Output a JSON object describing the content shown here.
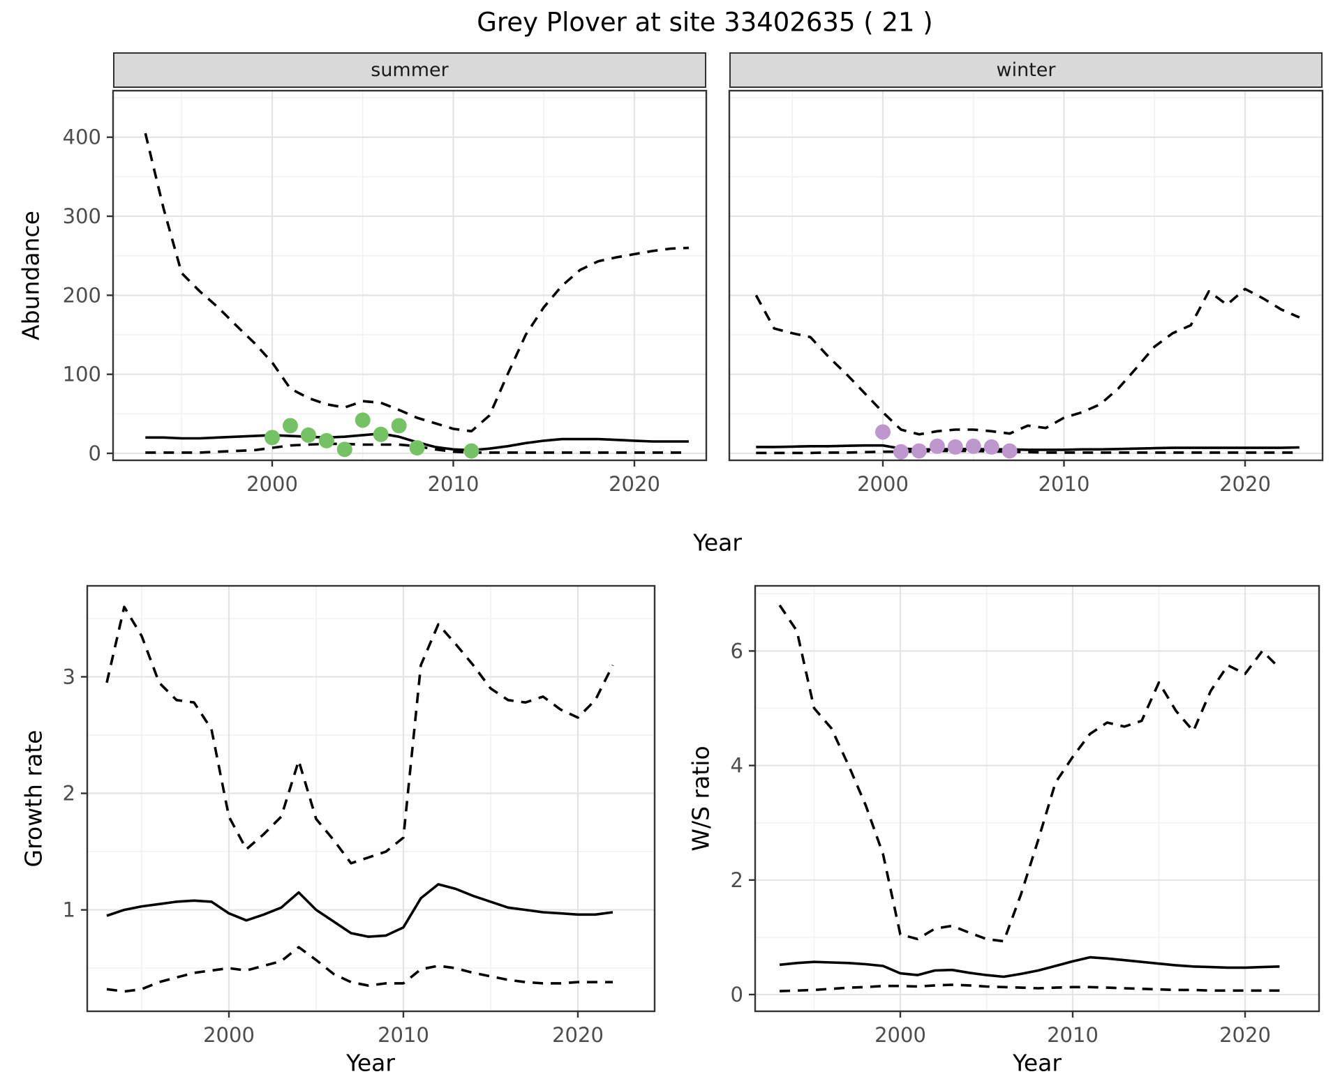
{
  "title": "Grey Plover at site 33402635 ( 21 )",
  "facets": [
    "summer",
    "winter"
  ],
  "colors": {
    "summer_point": "#74c263",
    "winter_point": "#bf97cf",
    "line": "#000000",
    "grid_major": "#e4e4e4",
    "grid_minor": "#f2f2f2",
    "strip_fill": "#d9d9d9",
    "panel_border": "#333333",
    "tick_text": "#4d4d4d"
  },
  "chart_data": [
    {
      "id": "abundance-summer",
      "type": "line",
      "facet": "summer",
      "xlabel": "Year",
      "ylabel": "Abundance",
      "x_ticks": [
        2000,
        2010,
        2020
      ],
      "x_minor": [
        1995,
        2005,
        2015
      ],
      "y_ticks": [
        0,
        100,
        200,
        300,
        400
      ],
      "y_minor": [
        50,
        150,
        250,
        350,
        450
      ],
      "ylim": [
        -9,
        459
      ],
      "xlim": [
        1991.2,
        2024.0
      ],
      "years": [
        1993,
        1994,
        1995,
        1996,
        1997,
        1998,
        1999,
        2000,
        2001,
        2002,
        2003,
        2004,
        2005,
        2006,
        2007,
        2008,
        2009,
        2010,
        2011,
        2012,
        2013,
        2014,
        2015,
        2016,
        2017,
        2018,
        2019,
        2020,
        2021,
        2022,
        2023
      ],
      "series": [
        {
          "name": "upper_ci",
          "style": "dashed",
          "values": [
            405,
            310,
            228,
            205,
            185,
            162,
            140,
            115,
            82,
            70,
            62,
            58,
            66,
            64,
            55,
            45,
            38,
            31,
            28,
            48,
            100,
            150,
            185,
            212,
            232,
            243,
            248,
            252,
            256,
            259,
            260
          ]
        },
        {
          "name": "median",
          "style": "solid",
          "values": [
            20,
            20,
            19,
            19,
            20,
            21,
            22,
            23,
            22,
            21,
            20,
            21,
            23,
            25,
            21,
            14,
            8,
            5,
            4,
            6,
            9,
            13,
            16,
            18,
            18,
            18,
            17,
            16,
            15,
            15,
            15
          ]
        },
        {
          "name": "lower_ci",
          "style": "dashed",
          "values": [
            1,
            1,
            1,
            1,
            2,
            3,
            4,
            7,
            10,
            11,
            12,
            12,
            11,
            11,
            11,
            9,
            5,
            2,
            1,
            1,
            1,
            1,
            1,
            1,
            1,
            1,
            1,
            1,
            1,
            1,
            1
          ]
        }
      ],
      "points": {
        "name": "observed-counts",
        "color_key": "summer_point",
        "x": [
          2000,
          2001,
          2002,
          2003,
          2004,
          2005,
          2006,
          2007,
          2008,
          2011
        ],
        "y": [
          20,
          35,
          23,
          16,
          5,
          42,
          24,
          35,
          7,
          3
        ]
      }
    },
    {
      "id": "abundance-winter",
      "type": "line",
      "facet": "winter",
      "xlabel": "Year",
      "ylabel": "Abundance",
      "x_ticks": [
        2000,
        2010,
        2020
      ],
      "x_minor": [
        1995,
        2005,
        2015
      ],
      "y_ticks": [
        0,
        100,
        200,
        300,
        400
      ],
      "y_minor": [
        50,
        150,
        250,
        350,
        450
      ],
      "ylim": [
        -9,
        459
      ],
      "xlim": [
        1991.2,
        2024.0
      ],
      "years": [
        1993,
        1994,
        1995,
        1996,
        1997,
        1998,
        1999,
        2000,
        2001,
        2002,
        2003,
        2004,
        2005,
        2006,
        2007,
        2008,
        2009,
        2010,
        2011,
        2012,
        2013,
        2014,
        2015,
        2016,
        2017,
        2018,
        2019,
        2020,
        2021,
        2022,
        2023
      ],
      "series": [
        {
          "name": "upper_ci",
          "style": "dashed",
          "values": [
            200,
            158,
            152,
            147,
            122,
            100,
            76,
            52,
            30,
            24,
            28,
            30,
            30,
            28,
            25,
            35,
            32,
            45,
            52,
            62,
            82,
            108,
            135,
            152,
            162,
            205,
            188,
            208,
            196,
            182,
            172
          ]
        },
        {
          "name": "median",
          "style": "solid",
          "values": [
            8,
            8,
            8.5,
            9,
            9,
            9.5,
            10,
            10,
            6,
            5,
            5,
            5.5,
            5.5,
            5,
            5,
            4.5,
            4.5,
            4.5,
            5,
            5,
            5.5,
            6,
            6.5,
            7,
            7,
            7,
            7,
            7,
            7,
            7,
            7.5
          ]
        },
        {
          "name": "lower_ci",
          "style": "dashed",
          "values": [
            0.5,
            0.5,
            0.5,
            0.5,
            1,
            1,
            1.5,
            2,
            2,
            2.5,
            3,
            3,
            3,
            2.5,
            2,
            1.5,
            1,
            1,
            1,
            1,
            1,
            1,
            1,
            1,
            1,
            1,
            1,
            1,
            1,
            1,
            1
          ]
        }
      ],
      "points": {
        "name": "observed-counts",
        "color_key": "winter_point",
        "x": [
          2000,
          2001,
          2002,
          2003,
          2004,
          2005,
          2006,
          2007
        ],
        "y": [
          27,
          2,
          3,
          9,
          8,
          9,
          8,
          3
        ]
      }
    },
    {
      "id": "growth-rate",
      "type": "line",
      "facet": null,
      "xlabel": "Year",
      "ylabel": "Growth rate",
      "x_ticks": [
        2000,
        2010,
        2020
      ],
      "x_minor": [
        1995,
        2005,
        2015
      ],
      "y_ticks": [
        1,
        2,
        3
      ],
      "y_minor": [
        0.5,
        1.5,
        2.5,
        3.5
      ],
      "ylim": [
        0.13,
        3.78
      ],
      "xlim": [
        1991.9,
        2024.5
      ],
      "years": [
        1993,
        1994,
        1995,
        1996,
        1997,
        1998,
        1999,
        2000,
        2001,
        2002,
        2003,
        2004,
        2005,
        2006,
        2007,
        2008,
        2009,
        2010,
        2011,
        2012,
        2013,
        2014,
        2015,
        2016,
        2017,
        2018,
        2019,
        2020,
        2021,
        2022
      ],
      "series": [
        {
          "name": "upper_ci",
          "style": "dashed",
          "values": [
            2.95,
            3.6,
            3.35,
            2.95,
            2.8,
            2.78,
            2.55,
            1.8,
            1.52,
            1.65,
            1.8,
            2.28,
            1.78,
            1.6,
            1.4,
            1.45,
            1.5,
            1.62,
            3.1,
            3.45,
            3.28,
            3.1,
            2.9,
            2.8,
            2.78,
            2.83,
            2.72,
            2.65,
            2.8,
            3.1
          ]
        },
        {
          "name": "median",
          "style": "solid",
          "values": [
            0.95,
            1.0,
            1.03,
            1.05,
            1.07,
            1.08,
            1.07,
            0.97,
            0.91,
            0.96,
            1.02,
            1.15,
            1.0,
            0.9,
            0.8,
            0.77,
            0.78,
            0.85,
            1.1,
            1.22,
            1.18,
            1.12,
            1.07,
            1.02,
            1.0,
            0.98,
            0.97,
            0.96,
            0.96,
            0.98
          ]
        },
        {
          "name": "lower_ci",
          "style": "dashed",
          "values": [
            0.32,
            0.3,
            0.32,
            0.38,
            0.42,
            0.46,
            0.48,
            0.5,
            0.48,
            0.52,
            0.56,
            0.68,
            0.57,
            0.45,
            0.38,
            0.35,
            0.37,
            0.37,
            0.49,
            0.52,
            0.5,
            0.46,
            0.43,
            0.4,
            0.38,
            0.37,
            0.37,
            0.38,
            0.38,
            0.38
          ]
        }
      ],
      "points": null
    },
    {
      "id": "ws-ratio",
      "type": "line",
      "facet": null,
      "xlabel": "Year",
      "ylabel": "W/S ratio",
      "x_ticks": [
        2000,
        2010,
        2020
      ],
      "x_minor": [
        1995,
        2005,
        2015
      ],
      "y_ticks": [
        0,
        2,
        4,
        6
      ],
      "y_minor": [
        1,
        3,
        5,
        7
      ],
      "ylim": [
        -0.29,
        7.14
      ],
      "xlim": [
        1991.6,
        2024.3
      ],
      "years": [
        1993,
        1994,
        1995,
        1996,
        1997,
        1998,
        1999,
        2000,
        2001,
        2002,
        2003,
        2004,
        2005,
        2006,
        2007,
        2008,
        2009,
        2010,
        2011,
        2012,
        2013,
        2014,
        2015,
        2016,
        2017,
        2018,
        2019,
        2020,
        2021,
        2022
      ],
      "series": [
        {
          "name": "upper_ci",
          "style": "dashed",
          "values": [
            6.8,
            6.35,
            5.0,
            4.65,
            4.0,
            3.3,
            2.45,
            1.05,
            0.97,
            1.15,
            1.2,
            1.08,
            0.97,
            0.93,
            1.75,
            2.7,
            3.7,
            4.15,
            4.55,
            4.75,
            4.68,
            4.78,
            5.45,
            4.95,
            4.6,
            5.3,
            5.75,
            5.6,
            6.0,
            5.7
          ]
        },
        {
          "name": "median",
          "style": "solid",
          "values": [
            0.52,
            0.55,
            0.57,
            0.56,
            0.55,
            0.53,
            0.5,
            0.37,
            0.34,
            0.42,
            0.43,
            0.38,
            0.34,
            0.31,
            0.36,
            0.42,
            0.5,
            0.58,
            0.65,
            0.63,
            0.6,
            0.57,
            0.54,
            0.51,
            0.49,
            0.48,
            0.47,
            0.47,
            0.48,
            0.49
          ]
        },
        {
          "name": "lower_ci",
          "style": "dashed",
          "values": [
            0.06,
            0.07,
            0.08,
            0.1,
            0.12,
            0.13,
            0.15,
            0.15,
            0.14,
            0.16,
            0.17,
            0.16,
            0.14,
            0.13,
            0.12,
            0.11,
            0.12,
            0.13,
            0.13,
            0.12,
            0.11,
            0.1,
            0.09,
            0.08,
            0.08,
            0.07,
            0.07,
            0.07,
            0.07,
            0.07
          ]
        }
      ],
      "points": null
    }
  ]
}
